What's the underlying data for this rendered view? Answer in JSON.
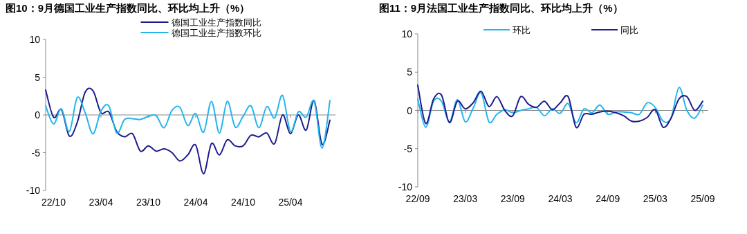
{
  "chart_data": [
    {
      "type": "line",
      "title": "图10：9月德国工业生产指数同比、环比均上升（%）",
      "categories": [
        null,
        "22/10",
        null,
        null,
        null,
        null,
        null,
        "23/04",
        null,
        null,
        null,
        null,
        null,
        "23/10",
        null,
        null,
        null,
        null,
        null,
        "24/04",
        null,
        null,
        null,
        null,
        null,
        "24/10",
        null,
        null,
        null,
        null,
        null,
        "25/04",
        null,
        null,
        null,
        null,
        null
      ],
      "series": [
        {
          "name": "德国工业生产指数同比",
          "color": "#1c1c8c",
          "values": [
            3.3,
            -0.3,
            0.7,
            -2.8,
            -1.0,
            3.0,
            3.2,
            0.3,
            0.4,
            -2.2,
            -2.9,
            -2.5,
            -4.8,
            -4.1,
            -4.8,
            -4.5,
            -5.0,
            -6.1,
            -5.3,
            -4.0,
            -7.8,
            -3.8,
            -5.3,
            -3.3,
            -4.1,
            -4.1,
            -2.7,
            -2.9,
            -2.4,
            -3.8,
            0,
            -2.5,
            0,
            -2.0,
            1.9,
            -3.9,
            -0.7
          ]
        },
        {
          "name": "德国工业生产指数环比",
          "color": "#22b5ee",
          "values": [
            1.2,
            -1.2,
            0.8,
            -2.2,
            2.3,
            0.3,
            -2.5,
            0.5,
            1.2,
            -2.4,
            -0.6,
            -0.5,
            -0.6,
            -0.2,
            -0.1,
            -1.7,
            0.6,
            1.0,
            -1.4,
            0.2,
            -2.3,
            1.8,
            -2.4,
            1.8,
            -1.6,
            -0.2,
            1.2,
            -1.7,
            1.1,
            -0.4,
            2.6,
            -2.2,
            0.4,
            -0.3,
            1.8,
            -4.4,
            1.9
          ]
        }
      ],
      "ylim": [
        -10,
        10
      ],
      "yticks": [
        -10,
        -5,
        0,
        5,
        10
      ],
      "legend": "top",
      "marker": "none",
      "line_style": "solid"
    },
    {
      "type": "line",
      "title": "图11：9月法国工业生产指数同比、环比均上升（%）",
      "categories": [
        "22/09",
        null,
        null,
        null,
        null,
        null,
        "23/03",
        null,
        null,
        null,
        null,
        null,
        "23/09",
        null,
        null,
        null,
        null,
        null,
        "24/03",
        null,
        null,
        null,
        null,
        null,
        "24/09",
        null,
        null,
        null,
        null,
        null,
        "25/03",
        null,
        null,
        null,
        null,
        null,
        "25/09"
      ],
      "series": [
        {
          "name": "环比",
          "color": "#22b5ee",
          "values": [
            1.5,
            -2.2,
            1.2,
            1.2,
            -1.5,
            1.4,
            -1.5,
            0.3,
            2.3,
            -1.5,
            -0.5,
            0.1,
            -0.3,
            0.0,
            0.2,
            0.4,
            -0.7,
            0.2,
            -0.4,
            0.9,
            -1.6,
            0.2,
            -0.3,
            0.7,
            -0.5,
            -0.2,
            -0.2,
            -0.3,
            -0.5,
            1.0,
            0.4,
            -1.4,
            -1.0,
            3.0,
            0.0,
            -1.0,
            0.7
          ]
        },
        {
          "name": "同比",
          "color": "#1c1c8c",
          "values": [
            3.3,
            -1.7,
            1.5,
            2.0,
            -1.6,
            1.2,
            0.2,
            1.0,
            2.5,
            0.5,
            1.8,
            0.0,
            -0.7,
            1.8,
            0.8,
            0.4,
            1.2,
            0.1,
            1.0,
            1.8,
            -2.2,
            -0.5,
            -0.5,
            -0.2,
            -0.1,
            -0.3,
            -0.7,
            -1.4,
            -1.4,
            -0.9,
            0.1,
            -2.2,
            -1.0,
            1.5,
            1.8,
            0.0,
            1.2
          ]
        }
      ],
      "ylim": [
        -10,
        10
      ],
      "yticks": [
        -10,
        -5,
        0,
        5,
        10
      ],
      "legend": "top",
      "marker": "none",
      "line_style": "solid"
    }
  ]
}
